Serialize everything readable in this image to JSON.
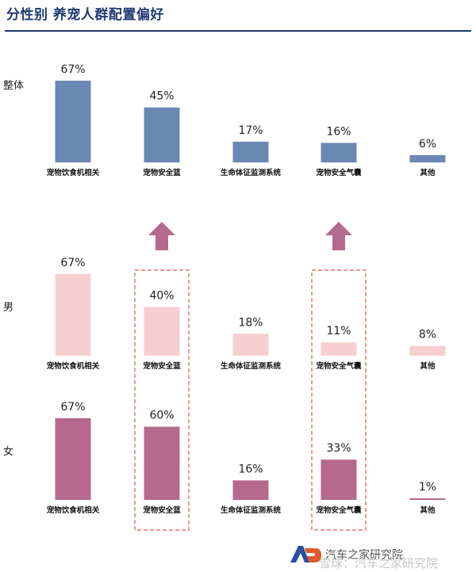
{
  "title": "分性别 养宠人群配置偏好",
  "footer": {
    "org": "汽车之家研究院",
    "watermark": "雪球：汽车之家研究院"
  },
  "colors": {
    "overall": "#6a88b4",
    "male": "#f7cfd0",
    "female": "#b5698d",
    "arrow": "#b5698d",
    "highlight_border": "#e05a4a",
    "title": "#1f3b73"
  },
  "chart_data": {
    "type": "bar",
    "categories": [
      "宠物饮食机相关",
      "宠物安全篮",
      "生命体征监测系统",
      "宠物安全气囊",
      "其他"
    ],
    "ylim": [
      0,
      100
    ],
    "series": [
      {
        "name": "整体",
        "values": [
          67,
          45,
          17,
          16,
          6
        ],
        "labels": [
          "67%",
          "45%",
          "17%",
          "16%",
          "6%"
        ]
      },
      {
        "name": "男",
        "values": [
          67,
          40,
          18,
          11,
          8
        ],
        "labels": [
          "67%",
          "40%",
          "18%",
          "11%",
          "8%"
        ]
      },
      {
        "name": "女",
        "values": [
          67,
          60,
          16,
          33,
          1
        ],
        "labels": [
          "67%",
          "60%",
          "16%",
          "33%",
          "1%"
        ]
      }
    ],
    "highlighted_categories": [
      "宠物安全篮",
      "宠物安全气囊"
    ],
    "arrow_icons": [
      "up-arrow-icon",
      "up-arrow-icon"
    ],
    "grid": false,
    "legend": "none"
  }
}
